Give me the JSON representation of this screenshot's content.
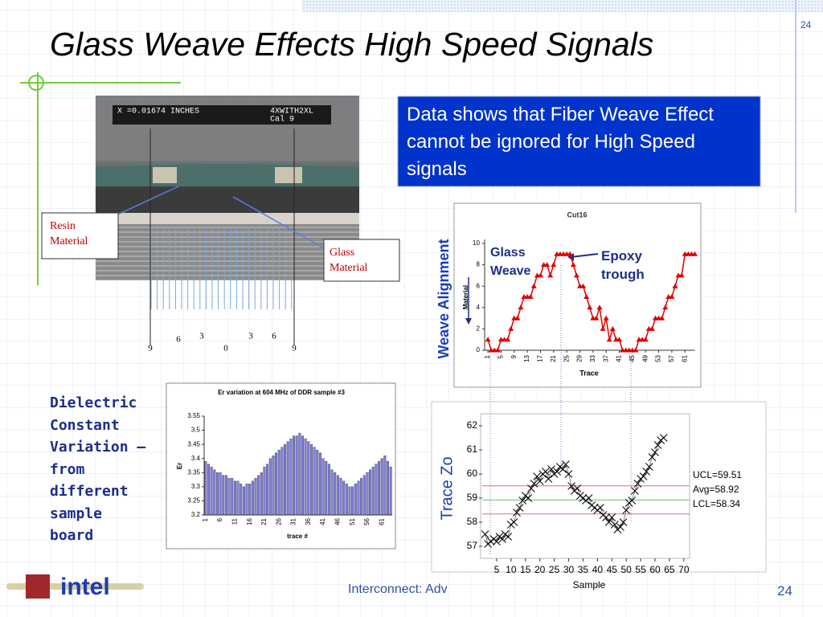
{
  "slide": {
    "title": "Glass Weave Effects High Speed Signals",
    "page_number_top": "24",
    "page_number": "24",
    "callout": "Data shows that Fiber Weave Effect cannot be ignored for High Speed signals",
    "dielectric_note": "Dielectric Constant Variation – from different sample board",
    "footer": "Interconnect: Adv",
    "logo": "intel"
  },
  "micrograph": {
    "readout": "X =0.01674   INCHES",
    "readout_right": [
      "4XWITH2XL",
      "Cal 9"
    ],
    "labels": [
      "Resin Material",
      "Glass Material"
    ],
    "scale": [
      "9",
      "6",
      "3",
      "0",
      "3",
      "6",
      "9"
    ]
  },
  "chart_data": [
    {
      "type": "line",
      "title": "Cut16",
      "x_label": "Trace",
      "y_label": "Material",
      "side_label": "Weave Alignment",
      "annotations": [
        "Glass Weave",
        "Epoxy trough"
      ],
      "color": "#e00000",
      "x": [
        1,
        2,
        3,
        4,
        5,
        6,
        7,
        8,
        9,
        10,
        11,
        12,
        13,
        14,
        15,
        16,
        17,
        18,
        19,
        20,
        21,
        22,
        23,
        24,
        25,
        26,
        27,
        28,
        29,
        30,
        31,
        32,
        33,
        34,
        35,
        36,
        37,
        38,
        39,
        40,
        41,
        42,
        43,
        44,
        45,
        46,
        47,
        48,
        49,
        50,
        51,
        52,
        53,
        54,
        55,
        56,
        57,
        58,
        59,
        60,
        61,
        62,
        63,
        64
      ],
      "values": [
        1,
        0,
        0,
        0,
        1,
        1,
        1,
        2,
        3,
        3,
        4,
        5,
        5,
        5,
        6,
        7,
        7,
        8,
        8,
        7,
        8,
        9,
        9,
        9,
        9,
        9,
        8,
        7,
        6,
        6,
        5,
        4,
        3,
        3,
        4,
        2,
        3,
        1,
        2,
        1,
        1,
        0,
        0,
        0,
        0,
        0,
        1,
        1,
        1,
        2,
        2,
        3,
        3,
        3,
        4,
        5,
        5,
        6,
        7,
        7,
        9,
        9,
        9,
        9
      ],
      "xlim": [
        0,
        64
      ],
      "ylim": [
        0,
        10
      ],
      "xticks": [
        1,
        5,
        9,
        13,
        17,
        21,
        25,
        29,
        33,
        37,
        41,
        45,
        49,
        53,
        57,
        61
      ],
      "yticks": [
        0,
        2,
        4,
        6,
        8,
        10
      ]
    },
    {
      "type": "bar",
      "title": "Er variation at 604 MHz of DDR sample #3",
      "x_label": "trace #",
      "y_label": "Er",
      "color": "#8080e0",
      "categories": [
        "1",
        null,
        null,
        null,
        null,
        "6",
        null,
        null,
        null,
        null,
        "11",
        null,
        null,
        null,
        null,
        "16",
        null,
        null,
        null,
        null,
        "21",
        null,
        null,
        null,
        null,
        "26",
        null,
        null,
        null,
        null,
        "31",
        null,
        null,
        null,
        null,
        "36",
        null,
        null,
        null,
        null,
        "41",
        null,
        null,
        null,
        null,
        "46",
        null,
        null,
        null,
        null,
        "51",
        null,
        null,
        null,
        null,
        "56",
        null,
        null,
        null,
        null,
        "61",
        null,
        null,
        null
      ],
      "values": [
        3.39,
        3.38,
        3.37,
        3.36,
        3.35,
        3.35,
        3.34,
        3.34,
        3.33,
        3.33,
        3.32,
        3.32,
        3.31,
        3.3,
        3.31,
        3.31,
        3.32,
        3.33,
        3.34,
        3.35,
        3.37,
        3.38,
        3.4,
        3.41,
        3.42,
        3.43,
        3.44,
        3.45,
        3.46,
        3.47,
        3.48,
        3.48,
        3.49,
        3.48,
        3.47,
        3.46,
        3.45,
        3.44,
        3.43,
        3.42,
        3.4,
        3.39,
        3.38,
        3.36,
        3.35,
        3.34,
        3.33,
        3.32,
        3.31,
        3.3,
        3.3,
        3.31,
        3.32,
        3.33,
        3.34,
        3.35,
        3.36,
        3.37,
        3.38,
        3.39,
        3.4,
        3.41,
        3.39,
        3.37
      ],
      "ylim": [
        3.2,
        3.55
      ],
      "yticks": [
        3.2,
        3.25,
        3.3,
        3.35,
        3.4,
        3.45,
        3.5,
        3.55
      ]
    },
    {
      "type": "scatter",
      "x_label": "Sample",
      "y_label": "Trace Zo",
      "color": "#000000",
      "x": [
        1,
        2,
        3,
        4,
        5,
        6,
        7,
        8,
        9,
        10,
        11,
        12,
        13,
        14,
        15,
        16,
        17,
        18,
        19,
        20,
        21,
        22,
        23,
        24,
        25,
        26,
        27,
        28,
        29,
        30,
        31,
        32,
        33,
        34,
        35,
        36,
        37,
        38,
        39,
        40,
        41,
        42,
        43,
        44,
        45,
        46,
        47,
        48,
        49,
        50,
        51,
        52,
        53,
        54,
        55,
        56,
        57,
        58,
        59,
        60,
        61,
        62,
        63
      ],
      "values": [
        57.5,
        57.1,
        57.2,
        57.3,
        57.2,
        57.4,
        57.3,
        57.5,
        57.4,
        57.9,
        58.0,
        58.4,
        58.6,
        58.9,
        59.1,
        59.0,
        59.4,
        59.6,
        59.9,
        59.7,
        60.0,
        60.1,
        59.8,
        60.2,
        60.0,
        60.1,
        60.3,
        60.2,
        60.4,
        60.0,
        59.5,
        59.3,
        59.4,
        59.1,
        59.0,
        58.9,
        59.0,
        58.7,
        58.6,
        58.5,
        58.6,
        58.3,
        58.2,
        58.0,
        58.2,
        57.9,
        57.7,
        57.8,
        58.0,
        58.5,
        58.8,
        58.9,
        59.3,
        59.6,
        59.8,
        59.9,
        60.1,
        60.3,
        60.7,
        60.9,
        61.2,
        61.4,
        61.5
      ],
      "xlim": [
        0,
        72
      ],
      "ylim": [
        56.5,
        62.5
      ],
      "xticks": [
        5,
        10,
        15,
        20,
        25,
        30,
        35,
        40,
        45,
        50,
        55,
        60,
        65,
        70
      ],
      "yticks": [
        57,
        58,
        59,
        60,
        61,
        62
      ],
      "control_lines": [
        {
          "label": "UCL=59.51",
          "value": 59.51,
          "color": "#e07070"
        },
        {
          "label": "Avg=58.92",
          "value": 58.92,
          "color": "#70c070"
        },
        {
          "label": "LCL=58.34",
          "value": 58.34,
          "color": "#e07070"
        }
      ]
    }
  ]
}
